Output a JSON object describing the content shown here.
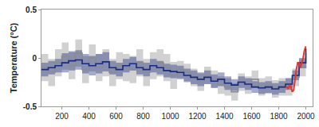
{
  "chart_data": {
    "type": "line",
    "y_label": "Temperature (°C)",
    "xlim": [
      50,
      2050
    ],
    "xticks": [
      200,
      400,
      600,
      800,
      1000,
      1200,
      1400,
      1600,
      1800,
      2000
    ],
    "ylim": [
      -0.5,
      0.5
    ],
    "yticks": [
      -0.5,
      0,
      0.5
    ],
    "grid": false,
    "series": [
      {
        "color": "#8c8c8c",
        "line_style": "step",
        "x": [
          50,
          100,
          150,
          200,
          250,
          300,
          350,
          400,
          450,
          500,
          550,
          600,
          650,
          700,
          750,
          800,
          850,
          900,
          950,
          1000,
          1050,
          1100,
          1150,
          1200,
          1250,
          1300,
          1350,
          1400,
          1450,
          1500,
          1550,
          1600,
          1650,
          1700,
          1750,
          1800,
          1850,
          1900,
          1950,
          2000
        ],
        "values": [
          -0.1,
          -0.15,
          -0.05,
          0.02,
          -0.08,
          0.05,
          -0.12,
          0.0,
          -0.1,
          -0.05,
          -0.15,
          -0.08,
          -0.1,
          -0.12,
          -0.05,
          -0.15,
          -0.08,
          -0.05,
          -0.1,
          -0.18,
          -0.12,
          -0.15,
          -0.2,
          -0.25,
          -0.18,
          -0.22,
          -0.28,
          -0.3,
          -0.35,
          -0.25,
          -0.28,
          -0.22,
          -0.3,
          -0.28,
          -0.32,
          -0.3,
          -0.3,
          -0.2,
          -0.1,
          0.05
        ],
        "lower": [
          -0.24,
          -0.29,
          -0.19,
          -0.12,
          -0.22,
          -0.09,
          -0.26,
          -0.14,
          -0.24,
          -0.19,
          -0.29,
          -0.22,
          -0.24,
          -0.26,
          -0.19,
          -0.29,
          -0.22,
          -0.19,
          -0.24,
          -0.32,
          -0.21,
          -0.24,
          -0.29,
          -0.34,
          -0.27,
          -0.31,
          -0.37,
          -0.39,
          -0.44,
          -0.34,
          -0.37,
          -0.31,
          -0.39,
          -0.37,
          -0.41,
          -0.39,
          -0.39,
          -0.29,
          -0.19,
          -0.04
        ],
        "upper": [
          0.04,
          -0.01,
          0.09,
          0.16,
          0.06,
          0.19,
          0.02,
          0.14,
          0.04,
          0.09,
          -0.01,
          0.06,
          0.04,
          0.02,
          0.09,
          -0.01,
          0.06,
          0.09,
          0.04,
          -0.04,
          -0.03,
          -0.06,
          -0.11,
          -0.16,
          -0.09,
          -0.13,
          -0.19,
          -0.21,
          -0.26,
          -0.16,
          -0.19,
          -0.13,
          -0.21,
          -0.19,
          -0.23,
          -0.21,
          -0.21,
          -0.11,
          -0.01,
          0.14
        ]
      },
      {
        "color": "#1a2a80",
        "line_style": "step",
        "x": [
          50,
          100,
          150,
          200,
          250,
          300,
          350,
          400,
          450,
          500,
          550,
          600,
          650,
          700,
          750,
          800,
          850,
          900,
          950,
          1000,
          1050,
          1100,
          1150,
          1200,
          1250,
          1300,
          1350,
          1400,
          1450,
          1500,
          1550,
          1600,
          1650,
          1700,
          1750,
          1800,
          1850,
          1900,
          1950,
          2000
        ],
        "values": [
          -0.12,
          -0.1,
          -0.08,
          -0.05,
          -0.03,
          -0.02,
          -0.06,
          -0.08,
          -0.06,
          -0.04,
          -0.1,
          -0.12,
          -0.08,
          -0.06,
          -0.1,
          -0.12,
          -0.08,
          -0.1,
          -0.13,
          -0.14,
          -0.15,
          -0.18,
          -0.2,
          -0.22,
          -0.2,
          -0.24,
          -0.22,
          -0.26,
          -0.28,
          -0.25,
          -0.27,
          -0.3,
          -0.31,
          -0.3,
          -0.32,
          -0.3,
          -0.27,
          -0.18,
          -0.05,
          0.1
        ],
        "lower": [
          -0.19,
          -0.17,
          -0.15,
          -0.15,
          -0.13,
          -0.12,
          -0.16,
          -0.18,
          -0.16,
          -0.14,
          -0.17,
          -0.19,
          -0.15,
          -0.13,
          -0.17,
          -0.19,
          -0.15,
          -0.17,
          -0.2,
          -0.21,
          -0.22,
          -0.25,
          -0.27,
          -0.29,
          -0.27,
          -0.31,
          -0.29,
          -0.33,
          -0.34,
          -0.31,
          -0.33,
          -0.36,
          -0.37,
          -0.36,
          -0.38,
          -0.36,
          -0.33,
          -0.23,
          -0.1,
          0.04
        ],
        "upper": [
          -0.05,
          -0.03,
          -0.01,
          0.05,
          0.07,
          0.08,
          0.04,
          0.02,
          0.04,
          0.06,
          -0.03,
          -0.05,
          -0.01,
          0.01,
          -0.03,
          -0.05,
          -0.01,
          -0.03,
          -0.06,
          -0.07,
          -0.08,
          -0.11,
          -0.13,
          -0.15,
          -0.13,
          -0.17,
          -0.15,
          -0.19,
          -0.22,
          -0.19,
          -0.21,
          -0.24,
          -0.25,
          -0.24,
          -0.26,
          -0.24,
          -0.21,
          -0.13,
          0.0,
          0.16
        ]
      },
      {
        "color": "#e8342a",
        "line_style": "solid",
        "x": [
          1850,
          1860,
          1870,
          1880,
          1890,
          1900,
          1910,
          1920,
          1930,
          1940,
          1950,
          1960,
          1970,
          1980,
          1990,
          2000
        ],
        "values": [
          -0.3,
          -0.3,
          -0.32,
          -0.28,
          -0.3,
          -0.35,
          -0.33,
          -0.22,
          -0.12,
          -0.05,
          -0.05,
          -0.1,
          -0.05,
          0.0,
          0.08,
          0.12
        ]
      }
    ]
  }
}
